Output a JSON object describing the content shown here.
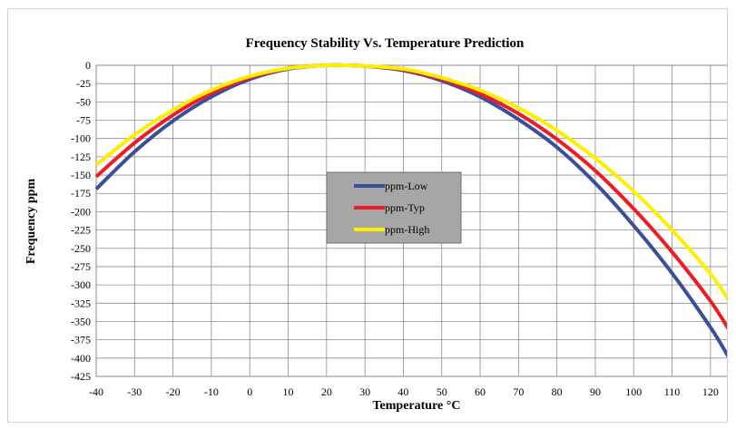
{
  "chart_data": {
    "type": "line",
    "title": "Frequency Stability Vs. Temperature Prediction",
    "xlabel": "Temperature °C",
    "ylabel": "Frequency ppm",
    "xlim": [
      -40,
      125
    ],
    "ylim": [
      -425,
      0
    ],
    "xticks": [
      -40,
      -30,
      -20,
      -10,
      0,
      10,
      20,
      30,
      40,
      50,
      60,
      70,
      80,
      90,
      100,
      110,
      120
    ],
    "yticks": [
      0,
      -25,
      -50,
      -75,
      -100,
      -125,
      -150,
      -175,
      -200,
      -225,
      -250,
      -275,
      -300,
      -325,
      -350,
      -375,
      -400,
      -425
    ],
    "grid": true,
    "legend_position": "center",
    "x": [
      -40,
      -30,
      -20,
      -10,
      0,
      10,
      20,
      25,
      30,
      40,
      50,
      60,
      70,
      80,
      90,
      100,
      110,
      120,
      125
    ],
    "series": [
      {
        "name": "ppm-Low",
        "color": "#3a4f9c",
        "values": [
          -169,
          -118,
          -76,
          -43,
          -19,
          -5,
          0,
          0,
          -1,
          -7,
          -21,
          -43,
          -74,
          -112,
          -161,
          -219,
          -284,
          -358,
          -401
        ]
      },
      {
        "name": "ppm-Typ",
        "color": "#ee1c25",
        "values": [
          -152,
          -106,
          -68,
          -38,
          -17,
          -4,
          0,
          0,
          -1,
          -6,
          -19,
          -39,
          -66,
          -101,
          -144,
          -196,
          -255,
          -322,
          -363
        ]
      },
      {
        "name": "ppm-High",
        "color": "#ffee00",
        "values": [
          -136,
          -95,
          -61,
          -34,
          -15,
          -4,
          0,
          0,
          -1,
          -5,
          -17,
          -34,
          -58,
          -89,
          -127,
          -172,
          -225,
          -285,
          -323
        ]
      }
    ]
  }
}
